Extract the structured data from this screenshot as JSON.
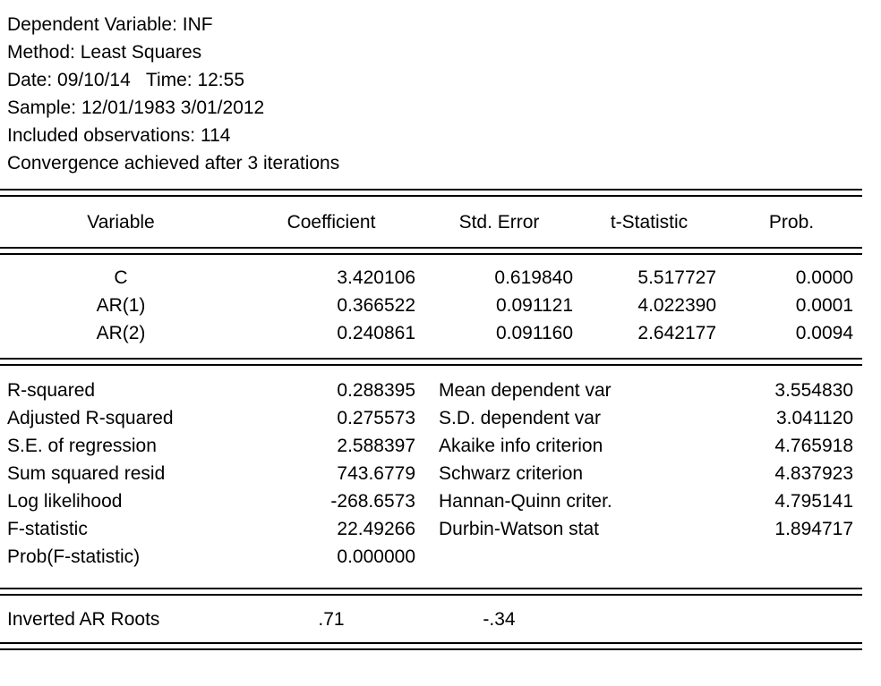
{
  "header": {
    "lines": [
      "Dependent Variable: INF",
      "Method: Least Squares",
      "Date: 09/10/14   Time: 12:55",
      "Sample: 12/01/1983 3/01/2012",
      "Included observations: 114",
      "Convergence achieved after 3 iterations"
    ]
  },
  "coef_table": {
    "columns": [
      "Variable",
      "Coefficient",
      "Std. Error",
      "t-Statistic",
      "Prob."
    ],
    "rows": [
      {
        "variable": "C",
        "coefficient": "3.420106",
        "std_error": "0.619840",
        "t_statistic": "5.517727",
        "prob": "0.0000"
      },
      {
        "variable": "AR(1)",
        "coefficient": "0.366522",
        "std_error": "0.091121",
        "t_statistic": "4.022390",
        "prob": "0.0001"
      },
      {
        "variable": "AR(2)",
        "coefficient": "0.240861",
        "std_error": "0.091160",
        "t_statistic": "2.642177",
        "prob": "0.0094"
      }
    ]
  },
  "stats": {
    "left": [
      {
        "label": "R-squared",
        "value": "0.288395"
      },
      {
        "label": "Adjusted R-squared",
        "value": "0.275573"
      },
      {
        "label": "S.E. of regression",
        "value": "2.588397"
      },
      {
        "label": "Sum squared resid",
        "value": "743.6779"
      },
      {
        "label": "Log likelihood",
        "value": "-268.6573"
      },
      {
        "label": "F-statistic",
        "value": "22.49266"
      },
      {
        "label": "Prob(F-statistic)",
        "value": "0.000000"
      }
    ],
    "right": [
      {
        "label": "Mean dependent var",
        "value": "3.554830"
      },
      {
        "label": "S.D. dependent var",
        "value": "3.041120"
      },
      {
        "label": "Akaike info criterion",
        "value": "4.765918"
      },
      {
        "label": "Schwarz criterion",
        "value": "4.837923"
      },
      {
        "label": "Hannan-Quinn criter.",
        "value": "4.795141"
      },
      {
        "label": "Durbin-Watson stat",
        "value": "1.894717"
      }
    ]
  },
  "roots": {
    "label": "Inverted AR Roots",
    "values": [
      ".71",
      "-.34"
    ]
  },
  "colors": {
    "text": "#000000",
    "background": "#ffffff",
    "rule": "#000000"
  }
}
